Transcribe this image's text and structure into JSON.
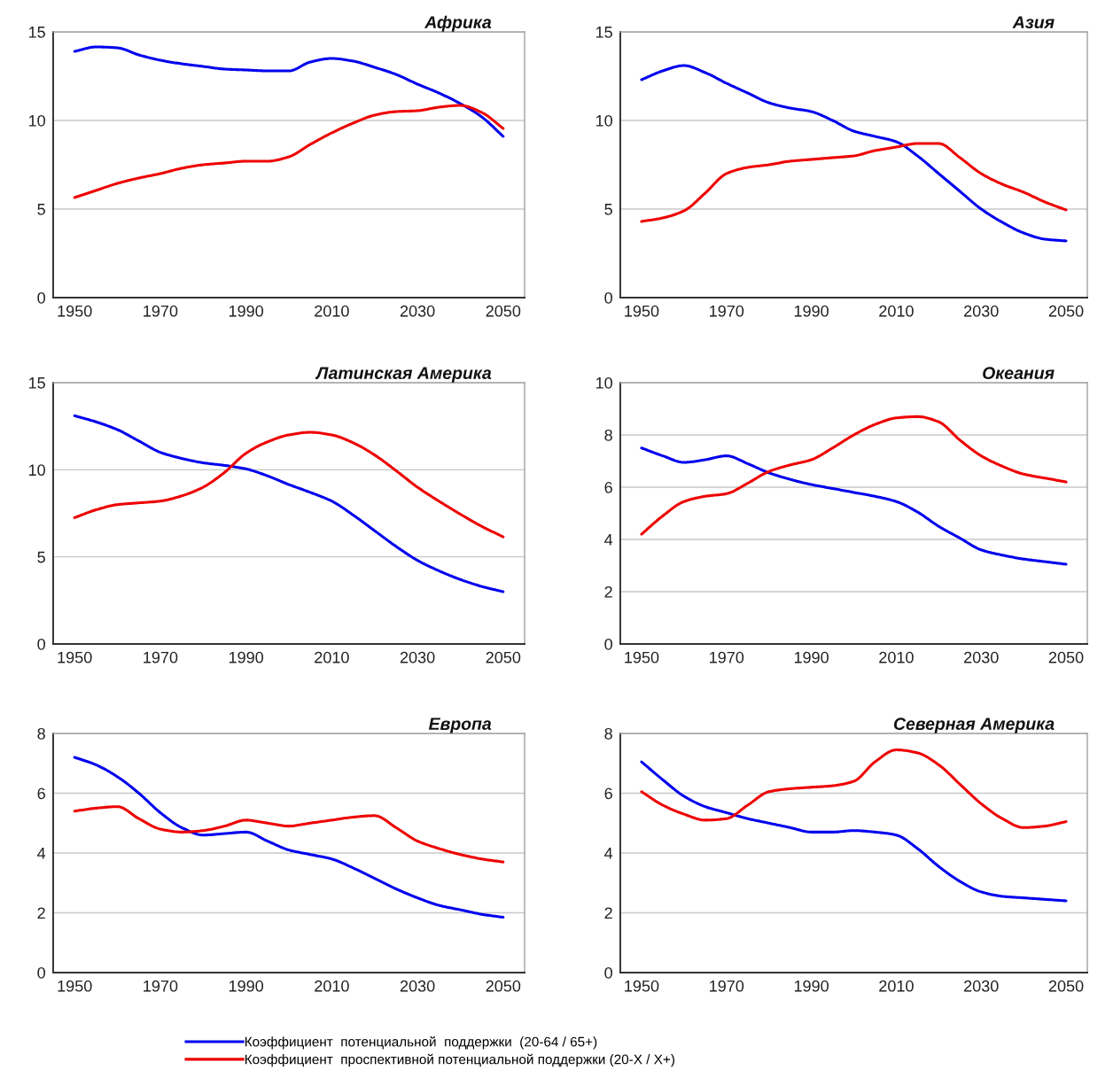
{
  "chart_data": [
    {
      "type": "line",
      "title": "Африка",
      "x": [
        1950,
        1955,
        1960,
        1965,
        1970,
        1975,
        1980,
        1985,
        1990,
        1995,
        2000,
        2005,
        2010,
        2015,
        2020,
        2025,
        2030,
        2035,
        2040,
        2045,
        2050
      ],
      "xlim": [
        1945,
        2055
      ],
      "xticks": [
        1950,
        1970,
        1990,
        2010,
        2030,
        2050
      ],
      "ylim": [
        0,
        15
      ],
      "yticks": [
        0,
        5,
        10,
        15
      ],
      "grid": "y",
      "series": [
        {
          "color": "#0000ee",
          "values": [
            13.9,
            14.15,
            14.1,
            13.7,
            13.4,
            13.2,
            13.05,
            12.9,
            12.85,
            12.8,
            12.8,
            13.3,
            13.5,
            13.35,
            13.0,
            12.6,
            12.05,
            11.55,
            10.95,
            10.2,
            9.1
          ]
        },
        {
          "color": "#ee0000",
          "values": [
            5.65,
            6.05,
            6.45,
            6.75,
            7.0,
            7.3,
            7.5,
            7.6,
            7.7,
            7.7,
            7.95,
            8.65,
            9.3,
            9.85,
            10.3,
            10.5,
            10.55,
            10.75,
            10.85,
            10.45,
            9.55
          ]
        }
      ]
    },
    {
      "type": "line",
      "title": "Азия",
      "x": [
        1950,
        1955,
        1960,
        1965,
        1970,
        1975,
        1980,
        1985,
        1990,
        1995,
        2000,
        2005,
        2010,
        2015,
        2020,
        2025,
        2030,
        2035,
        2040,
        2045,
        2050
      ],
      "xlim": [
        1945,
        2055
      ],
      "xticks": [
        1950,
        1970,
        1990,
        2010,
        2030,
        2050
      ],
      "ylim": [
        0,
        15
      ],
      "yticks": [
        0,
        5,
        10,
        15
      ],
      "grid": "y",
      "series": [
        {
          "color": "#0000ee",
          "values": [
            12.3,
            12.8,
            13.1,
            12.7,
            12.1,
            11.55,
            11.0,
            10.7,
            10.5,
            10.0,
            9.4,
            9.1,
            8.8,
            8.0,
            7.0,
            6.0,
            5.0,
            4.25,
            3.65,
            3.3,
            3.2
          ]
        },
        {
          "color": "#ee0000",
          "values": [
            4.3,
            4.5,
            4.9,
            5.9,
            7.0,
            7.35,
            7.5,
            7.7,
            7.8,
            7.9,
            8.0,
            8.3,
            8.5,
            8.7,
            8.7,
            7.9,
            7.0,
            6.4,
            5.95,
            5.4,
            4.95
          ]
        }
      ]
    },
    {
      "type": "line",
      "title": "Латинская Америка",
      "x": [
        1950,
        1955,
        1960,
        1965,
        1970,
        1975,
        1980,
        1985,
        1990,
        1995,
        2000,
        2005,
        2010,
        2015,
        2020,
        2025,
        2030,
        2035,
        2040,
        2045,
        2050
      ],
      "xlim": [
        1945,
        2055
      ],
      "xticks": [
        1950,
        1970,
        1990,
        2010,
        2030,
        2050
      ],
      "ylim": [
        0,
        15
      ],
      "yticks": [
        0,
        5,
        10,
        15
      ],
      "grid": "y",
      "series": [
        {
          "color": "#0000ee",
          "values": [
            13.1,
            12.75,
            12.3,
            11.65,
            11.0,
            10.65,
            10.4,
            10.25,
            10.05,
            9.65,
            9.15,
            8.7,
            8.2,
            7.4,
            6.5,
            5.6,
            4.8,
            4.2,
            3.7,
            3.3,
            3.0
          ]
        },
        {
          "color": "#ee0000",
          "values": [
            7.25,
            7.7,
            8.0,
            8.1,
            8.2,
            8.5,
            9.0,
            9.85,
            10.95,
            11.6,
            12.0,
            12.15,
            12.0,
            11.55,
            10.85,
            9.95,
            9.0,
            8.2,
            7.45,
            6.75,
            6.15
          ]
        }
      ]
    },
    {
      "type": "line",
      "title": "Океания",
      "x": [
        1950,
        1955,
        1960,
        1965,
        1970,
        1975,
        1980,
        1985,
        1990,
        1995,
        2000,
        2005,
        2010,
        2015,
        2020,
        2025,
        2030,
        2035,
        2040,
        2045,
        2050
      ],
      "xlim": [
        1945,
        2055
      ],
      "xticks": [
        1950,
        1970,
        1990,
        2010,
        2030,
        2050
      ],
      "ylim": [
        0,
        10
      ],
      "yticks": [
        0,
        2,
        4,
        6,
        8,
        10
      ],
      "grid": "y",
      "series": [
        {
          "color": "#0000ee",
          "values": [
            7.5,
            7.2,
            6.95,
            7.05,
            7.2,
            6.9,
            6.55,
            6.3,
            6.1,
            5.95,
            5.8,
            5.65,
            5.45,
            5.05,
            4.5,
            4.05,
            3.6,
            3.4,
            3.25,
            3.15,
            3.05
          ]
        },
        {
          "color": "#ee0000",
          "values": [
            4.2,
            4.9,
            5.45,
            5.65,
            5.75,
            6.15,
            6.6,
            6.85,
            7.05,
            7.5,
            8.0,
            8.4,
            8.65,
            8.7,
            8.5,
            7.8,
            7.2,
            6.8,
            6.5,
            6.35,
            6.2
          ]
        }
      ]
    },
    {
      "type": "line",
      "title": "Европа",
      "x": [
        1950,
        1955,
        1960,
        1965,
        1970,
        1975,
        1980,
        1985,
        1990,
        1995,
        2000,
        2005,
        2010,
        2015,
        2020,
        2025,
        2030,
        2035,
        2040,
        2045,
        2050
      ],
      "xlim": [
        1945,
        2055
      ],
      "xticks": [
        1950,
        1970,
        1990,
        2010,
        2030,
        2050
      ],
      "ylim": [
        0,
        8
      ],
      "yticks": [
        0,
        2,
        4,
        6,
        8
      ],
      "grid": "y",
      "legend": "bottom",
      "series": [
        {
          "name": "Коэффициент  потенциальной  поддержки  (20-64 / 65+)",
          "color": "#0000ee",
          "values": [
            7.2,
            6.95,
            6.55,
            6.0,
            5.35,
            4.85,
            4.6,
            4.65,
            4.7,
            4.4,
            4.1,
            3.95,
            3.8,
            3.5,
            3.15,
            2.8,
            2.5,
            2.25,
            2.1,
            1.95,
            1.85
          ]
        },
        {
          "name": "Коэффициент  проспективной потенциальной поддержки (20-X / X+)",
          "color": "#ee0000",
          "values": [
            5.4,
            5.5,
            5.55,
            5.15,
            4.8,
            4.7,
            4.75,
            4.9,
            5.1,
            5.0,
            4.9,
            5.0,
            5.1,
            5.2,
            5.25,
            4.85,
            4.4,
            4.15,
            3.95,
            3.8,
            3.7
          ]
        }
      ]
    },
    {
      "type": "line",
      "title": "Северная Америка",
      "x": [
        1950,
        1955,
        1960,
        1965,
        1970,
        1975,
        1980,
        1985,
        1990,
        1995,
        2000,
        2005,
        2010,
        2015,
        2020,
        2025,
        2030,
        2035,
        2040,
        2045,
        2050
      ],
      "xlim": [
        1945,
        2055
      ],
      "xticks": [
        1950,
        1970,
        1990,
        2010,
        2030,
        2050
      ],
      "ylim": [
        0,
        8
      ],
      "yticks": [
        0,
        2,
        4,
        6,
        8
      ],
      "grid": "y",
      "series": [
        {
          "color": "#0000ee",
          "values": [
            7.05,
            6.45,
            5.9,
            5.55,
            5.35,
            5.15,
            5.0,
            4.85,
            4.7,
            4.7,
            4.75,
            4.7,
            4.6,
            4.15,
            3.55,
            3.05,
            2.7,
            2.55,
            2.5,
            2.45,
            2.4
          ]
        },
        {
          "color": "#ee0000",
          "values": [
            6.05,
            5.6,
            5.3,
            5.1,
            5.15,
            5.6,
            6.05,
            6.15,
            6.2,
            6.25,
            6.4,
            7.05,
            7.45,
            7.35,
            6.95,
            6.3,
            5.65,
            5.15,
            4.85,
            4.9,
            5.05
          ]
        }
      ]
    }
  ]
}
